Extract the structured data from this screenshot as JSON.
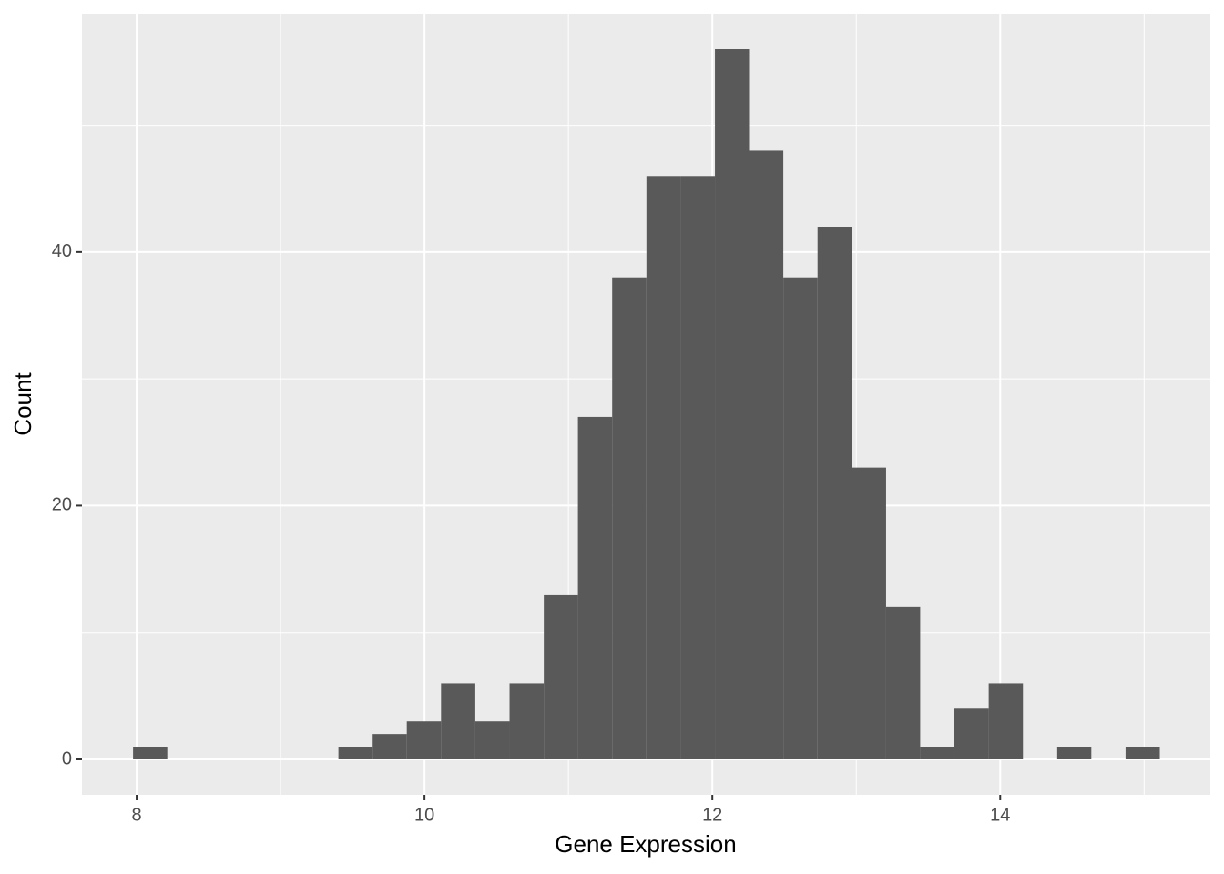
{
  "chart_data": {
    "type": "histogram",
    "x_label": "Gene Expression",
    "y_label": "Count",
    "bins": [
      7.975,
      8.213,
      8.451,
      8.688,
      8.926,
      9.164,
      9.402,
      9.64,
      9.877,
      10.115,
      10.353,
      10.591,
      10.829,
      11.066,
      11.304,
      11.542,
      11.78,
      12.018,
      12.255,
      12.493,
      12.731,
      12.969,
      13.207,
      13.444,
      13.682,
      13.92,
      14.158,
      14.396,
      14.633,
      14.871,
      15.109
    ],
    "values": [
      1,
      0,
      0,
      0,
      0,
      0,
      1,
      2,
      3,
      6,
      3,
      6,
      13,
      27,
      38,
      46,
      46,
      56,
      48,
      38,
      42,
      23,
      12,
      1,
      4,
      6,
      0,
      1,
      0,
      1
    ],
    "color": "#595959",
    "xlim": [
      7.62,
      15.46
    ],
    "xticks": [
      8,
      10,
      12,
      14
    ],
    "x_minor_breaks": [
      9,
      11,
      13,
      15
    ],
    "ylim": [
      -2.8,
      58.8
    ],
    "yticks": [
      0,
      20,
      40
    ],
    "y_minor_breaks": [
      10,
      30,
      50
    ],
    "grid": true
  }
}
